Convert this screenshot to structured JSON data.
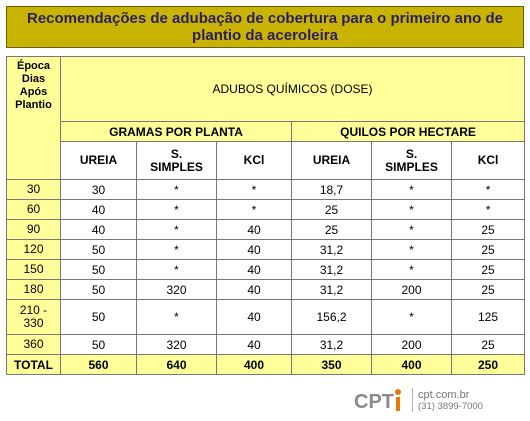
{
  "title": {
    "line1": "Recomendações de adubação de cobertura para o primeiro ano de",
    "line2": "plantio da aceroleira"
  },
  "table": {
    "header_epoca": [
      "Época",
      "Dias",
      "Após",
      "Plantio"
    ],
    "header_adubos": "ADUBOS QUÍMICOS (DOSE)",
    "group_gramas": "GRAMAS POR PLANTA",
    "group_quilos": "QUILOS POR HECTARE",
    "sub_gramas": [
      "UREIA",
      "S.\nSIMPLES",
      "KCl"
    ],
    "sub_quilos": [
      "UREIA",
      "S.\nSIMPLES",
      "KCl"
    ],
    "rows": [
      [
        "30",
        "30",
        "*",
        "*",
        "18,7",
        "*",
        "*"
      ],
      [
        "60",
        "40",
        "*",
        "*",
        "25",
        "*",
        "*"
      ],
      [
        "90",
        "40",
        "*",
        "40",
        "25",
        "*",
        "25"
      ],
      [
        "120",
        "50",
        "*",
        "40",
        "31,2",
        "*",
        "25"
      ],
      [
        "150",
        "50",
        "*",
        "40",
        "31,2",
        "*",
        "25"
      ],
      [
        "180",
        "50",
        "320",
        "40",
        "31,2",
        "200",
        "25"
      ],
      [
        "210 -\n330",
        "50",
        "*",
        "40",
        "156,2",
        "*",
        "125"
      ],
      [
        "360",
        "50",
        "320",
        "40",
        "31,2",
        "200",
        "25"
      ]
    ],
    "total": [
      "TOTAL",
      "560",
      "640",
      "400",
      "350",
      "400",
      "250"
    ]
  },
  "footer": {
    "logo_text": "CPT",
    "site": "cpt.com.br",
    "phone": "(31) 3899-7000"
  },
  "colors": {
    "title_bg": "#c8b400",
    "title_text": "#2b1e66",
    "header_bg": "#ffff99",
    "logo_accent": "#e87a00",
    "logo_text": "#8a8a8a"
  }
}
